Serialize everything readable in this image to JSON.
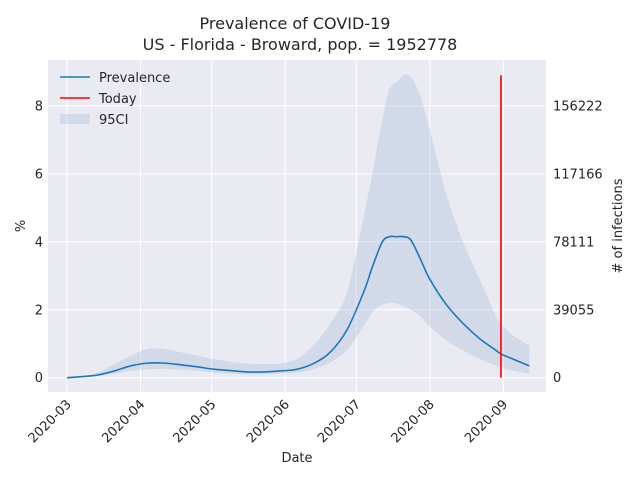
{
  "chart_data": {
    "type": "line",
    "title": "Prevalence of COVID-19",
    "subtitle": "US - Florida - Broward, pop. = 1952778",
    "xlabel": "Date",
    "ylabel": "%",
    "ylabel_right": "# of infections",
    "x_ticks": [
      "2020-03",
      "2020-04",
      "2020-05",
      "2020-06",
      "2020-07",
      "2020-08",
      "2020-09"
    ],
    "y_ticks": [
      "0",
      "2",
      "4",
      "6",
      "8"
    ],
    "y_ticks_right": [
      "0",
      "39055",
      "78111",
      "117166",
      "156222"
    ],
    "xlim": [
      "2020-02-22",
      "2020-09-19"
    ],
    "ylim": [
      -0.42,
      9.35
    ],
    "grid": true,
    "legend_position": "top-left",
    "legend": [
      {
        "label": "Prevalence",
        "color": "#1f77b4",
        "kind": "line"
      },
      {
        "label": "Today",
        "color": "#ff0000",
        "kind": "line"
      },
      {
        "label": "95CI",
        "color": "#b0c4de",
        "kind": "patch"
      }
    ],
    "today": {
      "date": "2020-08-31",
      "ymin": 0,
      "ymax": 8.9
    },
    "series": [
      {
        "name": "Prevalence",
        "color": "#1f77b4",
        "points": [
          [
            "2020-03-01",
            0.0
          ],
          [
            "2020-03-07",
            0.03
          ],
          [
            "2020-03-14",
            0.08
          ],
          [
            "2020-03-21",
            0.2
          ],
          [
            "2020-03-28",
            0.35
          ],
          [
            "2020-04-04",
            0.43
          ],
          [
            "2020-04-11",
            0.43
          ],
          [
            "2020-04-18",
            0.38
          ],
          [
            "2020-04-25",
            0.32
          ],
          [
            "2020-05-02",
            0.25
          ],
          [
            "2020-05-09",
            0.21
          ],
          [
            "2020-05-16",
            0.17
          ],
          [
            "2020-05-23",
            0.17
          ],
          [
            "2020-05-30",
            0.2
          ],
          [
            "2020-06-06",
            0.25
          ],
          [
            "2020-06-13",
            0.42
          ],
          [
            "2020-06-20",
            0.75
          ],
          [
            "2020-06-27",
            1.4
          ],
          [
            "2020-07-04",
            2.5
          ],
          [
            "2020-07-08",
            3.3
          ],
          [
            "2020-07-12",
            4.0
          ],
          [
            "2020-07-15",
            4.15
          ],
          [
            "2020-07-18",
            4.15
          ],
          [
            "2020-07-21",
            4.15
          ],
          [
            "2020-07-24",
            4.05
          ],
          [
            "2020-07-28",
            3.5
          ],
          [
            "2020-08-01",
            2.9
          ],
          [
            "2020-08-08",
            2.15
          ],
          [
            "2020-08-15",
            1.6
          ],
          [
            "2020-08-22",
            1.15
          ],
          [
            "2020-08-29",
            0.8
          ],
          [
            "2020-08-31",
            0.7
          ],
          [
            "2020-09-05",
            0.55
          ],
          [
            "2020-09-12",
            0.35
          ]
        ],
        "ci_lower": [
          [
            "2020-03-01",
            0.0
          ],
          [
            "2020-03-07",
            0.02
          ],
          [
            "2020-03-14",
            0.05
          ],
          [
            "2020-03-21",
            0.12
          ],
          [
            "2020-03-28",
            0.2
          ],
          [
            "2020-04-04",
            0.25
          ],
          [
            "2020-04-11",
            0.26
          ],
          [
            "2020-04-18",
            0.24
          ],
          [
            "2020-04-25",
            0.2
          ],
          [
            "2020-05-02",
            0.15
          ],
          [
            "2020-05-09",
            0.12
          ],
          [
            "2020-05-16",
            0.1
          ],
          [
            "2020-05-23",
            0.1
          ],
          [
            "2020-05-30",
            0.12
          ],
          [
            "2020-06-06",
            0.15
          ],
          [
            "2020-06-13",
            0.25
          ],
          [
            "2020-06-20",
            0.45
          ],
          [
            "2020-06-27",
            0.8
          ],
          [
            "2020-07-04",
            1.5
          ],
          [
            "2020-07-08",
            1.95
          ],
          [
            "2020-07-12",
            2.15
          ],
          [
            "2020-07-15",
            2.2
          ],
          [
            "2020-07-18",
            2.18
          ],
          [
            "2020-07-21",
            2.1
          ],
          [
            "2020-07-24",
            2.0
          ],
          [
            "2020-07-28",
            1.8
          ],
          [
            "2020-08-01",
            1.5
          ],
          [
            "2020-08-08",
            1.1
          ],
          [
            "2020-08-15",
            0.8
          ],
          [
            "2020-08-22",
            0.55
          ],
          [
            "2020-08-29",
            0.35
          ],
          [
            "2020-08-31",
            0.3
          ],
          [
            "2020-09-05",
            0.2
          ],
          [
            "2020-09-12",
            0.12
          ]
        ],
        "ci_upper": [
          [
            "2020-03-01",
            0.0
          ],
          [
            "2020-03-07",
            0.05
          ],
          [
            "2020-03-14",
            0.15
          ],
          [
            "2020-03-21",
            0.4
          ],
          [
            "2020-03-28",
            0.65
          ],
          [
            "2020-04-04",
            0.85
          ],
          [
            "2020-04-11",
            0.85
          ],
          [
            "2020-04-18",
            0.75
          ],
          [
            "2020-04-25",
            0.65
          ],
          [
            "2020-05-02",
            0.55
          ],
          [
            "2020-05-09",
            0.47
          ],
          [
            "2020-05-16",
            0.42
          ],
          [
            "2020-05-23",
            0.4
          ],
          [
            "2020-05-30",
            0.42
          ],
          [
            "2020-06-06",
            0.55
          ],
          [
            "2020-06-13",
            0.95
          ],
          [
            "2020-06-20",
            1.6
          ],
          [
            "2020-06-27",
            2.5
          ],
          [
            "2020-07-04",
            4.7
          ],
          [
            "2020-07-08",
            6.1
          ],
          [
            "2020-07-12",
            7.6
          ],
          [
            "2020-07-15",
            8.5
          ],
          [
            "2020-07-18",
            8.7
          ],
          [
            "2020-07-21",
            8.9
          ],
          [
            "2020-07-24",
            8.85
          ],
          [
            "2020-07-28",
            8.3
          ],
          [
            "2020-08-01",
            7.3
          ],
          [
            "2020-08-08",
            5.4
          ],
          [
            "2020-08-15",
            4.0
          ],
          [
            "2020-08-22",
            2.9
          ],
          [
            "2020-08-29",
            1.8
          ],
          [
            "2020-08-31",
            1.6
          ],
          [
            "2020-09-05",
            1.25
          ],
          [
            "2020-09-12",
            0.95
          ]
        ]
      }
    ]
  }
}
